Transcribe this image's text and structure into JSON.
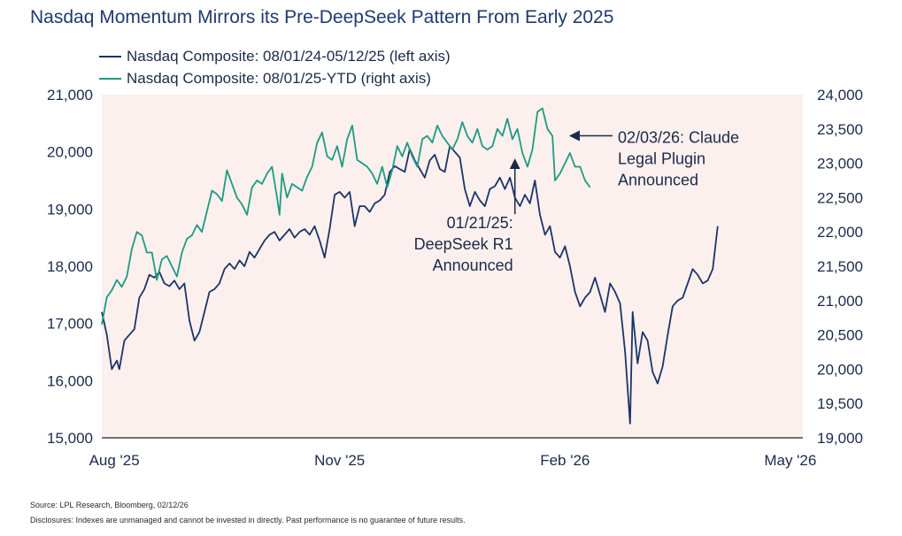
{
  "title": "Nasdaq Momentum Mirrors its Pre-DeepSeek Pattern From Early 2025",
  "colors": {
    "series_dark": "#1b3468",
    "series_teal": "#1e9a82",
    "plot_bg": "#fbf0ed",
    "text": "#1b2a4a"
  },
  "source": "Source: LPL Research, Bloomberg, 02/12/26",
  "disclosure": "Disclosures: Indexes are unmanaged and cannot be invested in directly. Past performance is no guarantee of future results.",
  "chart_data": {
    "type": "line",
    "legend_position": "top-left",
    "grid": false,
    "x_ticks": [
      "Aug '25",
      "Nov '25",
      "Feb '26",
      "May '26"
    ],
    "x_range_days": [
      0,
      280
    ],
    "x_tick_days": [
      5,
      95,
      185,
      275
    ],
    "left_axis": {
      "ticks": [
        "15,000",
        "16,000",
        "17,000",
        "18,000",
        "19,000",
        "20,000",
        "21,000"
      ],
      "ylim": [
        15000,
        21000
      ]
    },
    "right_axis": {
      "ticks": [
        "19,000",
        "19,500",
        "20,000",
        "20,500",
        "21,000",
        "21,500",
        "22,000",
        "22,500",
        "23,000",
        "23,500",
        "24,000"
      ],
      "ylim": [
        19000,
        24000
      ]
    },
    "series": [
      {
        "name": "Nasdaq Composite: 08/01/24-05/12/25 (left axis)",
        "axis": "left",
        "points": [
          [
            0,
            17200
          ],
          [
            2,
            16800
          ],
          [
            4,
            16200
          ],
          [
            6,
            16350
          ],
          [
            7,
            16200
          ],
          [
            9,
            16700
          ],
          [
            11,
            16800
          ],
          [
            13,
            16900
          ],
          [
            15,
            17450
          ],
          [
            17,
            17600
          ],
          [
            19,
            17850
          ],
          [
            21,
            17800
          ],
          [
            23,
            17900
          ],
          [
            25,
            17700
          ],
          [
            27,
            17650
          ],
          [
            29,
            17750
          ],
          [
            31,
            17600
          ],
          [
            33,
            17700
          ],
          [
            35,
            17050
          ],
          [
            37,
            16700
          ],
          [
            39,
            16850
          ],
          [
            41,
            17200
          ],
          [
            43,
            17550
          ],
          [
            45,
            17600
          ],
          [
            47,
            17700
          ],
          [
            49,
            17950
          ],
          [
            51,
            18050
          ],
          [
            53,
            17950
          ],
          [
            55,
            18100
          ],
          [
            57,
            18000
          ],
          [
            59,
            18250
          ],
          [
            61,
            18150
          ],
          [
            63,
            18300
          ],
          [
            65,
            18450
          ],
          [
            67,
            18550
          ],
          [
            69,
            18600
          ],
          [
            71,
            18450
          ],
          [
            73,
            18550
          ],
          [
            75,
            18650
          ],
          [
            77,
            18500
          ],
          [
            79,
            18600
          ],
          [
            81,
            18650
          ],
          [
            83,
            18550
          ],
          [
            85,
            18700
          ],
          [
            87,
            18450
          ],
          [
            89,
            18150
          ],
          [
            91,
            18650
          ],
          [
            93,
            19250
          ],
          [
            95,
            19300
          ],
          [
            97,
            19200
          ],
          [
            99,
            19300
          ],
          [
            101,
            18700
          ],
          [
            103,
            19050
          ],
          [
            105,
            19050
          ],
          [
            107,
            18950
          ],
          [
            109,
            19100
          ],
          [
            111,
            19150
          ],
          [
            113,
            19250
          ],
          [
            115,
            19650
          ],
          [
            117,
            19750
          ],
          [
            119,
            19700
          ],
          [
            121,
            19650
          ],
          [
            123,
            20050
          ],
          [
            125,
            19850
          ],
          [
            127,
            19700
          ],
          [
            129,
            19550
          ],
          [
            131,
            19850
          ],
          [
            133,
            19950
          ],
          [
            135,
            19700
          ],
          [
            137,
            19650
          ],
          [
            139,
            20100
          ],
          [
            141,
            20000
          ],
          [
            143,
            19900
          ],
          [
            145,
            19350
          ],
          [
            147,
            19050
          ],
          [
            149,
            19300
          ],
          [
            151,
            19150
          ],
          [
            153,
            19050
          ],
          [
            155,
            19350
          ],
          [
            157,
            19400
          ],
          [
            159,
            19550
          ],
          [
            161,
            19350
          ],
          [
            163,
            19550
          ],
          [
            165,
            19200
          ],
          [
            167,
            19050
          ],
          [
            169,
            19250
          ],
          [
            171,
            19100
          ],
          [
            173,
            19500
          ],
          [
            175,
            18900
          ],
          [
            177,
            18550
          ],
          [
            179,
            18700
          ],
          [
            181,
            18250
          ],
          [
            183,
            18150
          ],
          [
            185,
            18350
          ],
          [
            187,
            18000
          ],
          [
            189,
            17550
          ],
          [
            191,
            17300
          ],
          [
            193,
            17450
          ],
          [
            195,
            17550
          ],
          [
            197,
            17800
          ],
          [
            199,
            17500
          ],
          [
            201,
            17200
          ],
          [
            203,
            17700
          ],
          [
            205,
            17550
          ],
          [
            207,
            17350
          ],
          [
            209,
            16500
          ],
          [
            211,
            15250
          ],
          [
            212,
            17200
          ],
          [
            214,
            16300
          ],
          [
            216,
            16850
          ],
          [
            218,
            16700
          ],
          [
            220,
            16150
          ],
          [
            222,
            15950
          ],
          [
            224,
            16250
          ],
          [
            226,
            16800
          ],
          [
            228,
            17300
          ],
          [
            230,
            17400
          ],
          [
            232,
            17450
          ],
          [
            234,
            17700
          ],
          [
            236,
            17950
          ],
          [
            238,
            17850
          ],
          [
            240,
            17700
          ],
          [
            242,
            17750
          ],
          [
            244,
            17950
          ],
          [
            246,
            18700
          ]
        ]
      },
      {
        "name": "Nasdaq Composite: 08/01/25-YTD (right axis)",
        "axis": "right",
        "points": [
          [
            0,
            20650
          ],
          [
            2,
            21050
          ],
          [
            4,
            21150
          ],
          [
            6,
            21300
          ],
          [
            8,
            21200
          ],
          [
            10,
            21350
          ],
          [
            12,
            21750
          ],
          [
            14,
            22000
          ],
          [
            16,
            21950
          ],
          [
            18,
            21700
          ],
          [
            20,
            21700
          ],
          [
            22,
            21300
          ],
          [
            24,
            21600
          ],
          [
            26,
            21650
          ],
          [
            28,
            21500
          ],
          [
            30,
            21350
          ],
          [
            32,
            21700
          ],
          [
            34,
            21900
          ],
          [
            36,
            21950
          ],
          [
            38,
            22100
          ],
          [
            40,
            22000
          ],
          [
            42,
            22300
          ],
          [
            44,
            22600
          ],
          [
            46,
            22550
          ],
          [
            48,
            22450
          ],
          [
            50,
            22900
          ],
          [
            52,
            22700
          ],
          [
            54,
            22500
          ],
          [
            56,
            22400
          ],
          [
            58,
            22250
          ],
          [
            60,
            22650
          ],
          [
            62,
            22750
          ],
          [
            64,
            22700
          ],
          [
            66,
            22850
          ],
          [
            68,
            22950
          ],
          [
            70,
            22500
          ],
          [
            71,
            22250
          ],
          [
            72,
            22850
          ],
          [
            74,
            22500
          ],
          [
            76,
            22700
          ],
          [
            78,
            22650
          ],
          [
            80,
            22600
          ],
          [
            82,
            22800
          ],
          [
            84,
            22950
          ],
          [
            86,
            23300
          ],
          [
            88,
            23450
          ],
          [
            90,
            23100
          ],
          [
            92,
            23050
          ],
          [
            94,
            23250
          ],
          [
            96,
            22950
          ],
          [
            98,
            23350
          ],
          [
            100,
            23550
          ],
          [
            102,
            23050
          ],
          [
            104,
            23000
          ],
          [
            106,
            22950
          ],
          [
            108,
            22850
          ],
          [
            110,
            22700
          ],
          [
            112,
            22950
          ],
          [
            114,
            22650
          ],
          [
            116,
            22900
          ],
          [
            118,
            23250
          ],
          [
            120,
            23100
          ],
          [
            122,
            23300
          ],
          [
            124,
            23100
          ],
          [
            126,
            22950
          ],
          [
            128,
            23350
          ],
          [
            130,
            23400
          ],
          [
            132,
            23300
          ],
          [
            134,
            23550
          ],
          [
            136,
            23400
          ],
          [
            138,
            23300
          ],
          [
            140,
            23200
          ],
          [
            142,
            23350
          ],
          [
            144,
            23600
          ],
          [
            146,
            23400
          ],
          [
            148,
            23300
          ],
          [
            150,
            23500
          ],
          [
            152,
            23250
          ],
          [
            154,
            23200
          ],
          [
            156,
            23250
          ],
          [
            158,
            23500
          ],
          [
            160,
            23400
          ],
          [
            162,
            23650
          ],
          [
            164,
            23350
          ],
          [
            166,
            23500
          ],
          [
            168,
            23150
          ],
          [
            170,
            22950
          ],
          [
            172,
            23200
          ],
          [
            174,
            23750
          ],
          [
            176,
            23800
          ],
          [
            178,
            23500
          ],
          [
            180,
            23400
          ],
          [
            181,
            22750
          ],
          [
            183,
            22850
          ],
          [
            185,
            23000
          ],
          [
            187,
            23150
          ],
          [
            189,
            22950
          ],
          [
            191,
            22950
          ],
          [
            193,
            22750
          ],
          [
            195,
            22650
          ]
        ]
      }
    ],
    "annotations": [
      {
        "lines": [
          "02/03/26: Claude",
          "Legal Plugin",
          "Announced"
        ],
        "day": 187,
        "value": 23400,
        "axis": "right"
      },
      {
        "lines": [
          "01/21/25:",
          "DeepSeek R1",
          "Announced"
        ],
        "day": 165,
        "value": 19900,
        "axis": "left"
      }
    ]
  }
}
